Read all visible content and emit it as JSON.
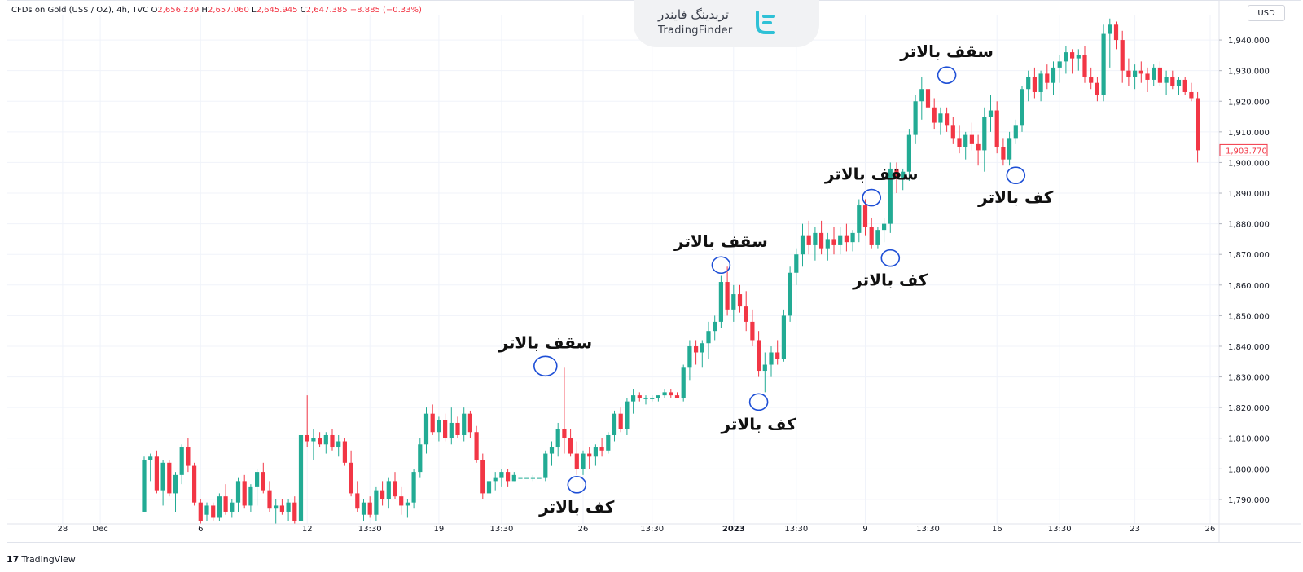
{
  "header": {
    "symbol": "CFDs on Gold (US$ / OZ), 4h, TVC",
    "o_label": "O",
    "o_value": "2,656.239",
    "h_label": "H",
    "h_value": "2,657.060",
    "l_label": "L",
    "l_value": "2,645.945",
    "c_label": "C",
    "c_value": "2,647.385",
    "change": "−8.885 (−0.33%)"
  },
  "brand": {
    "name_fa": "تریدینگ فایندر",
    "name_en": "TradingFinder"
  },
  "currency": "USD",
  "footer": {
    "platform": "TradingView"
  },
  "colors": {
    "up": "#22ab94",
    "down": "#f23645",
    "marker": "#1e4fd6",
    "grid": "#f0f3fa"
  },
  "chart_data": {
    "type": "candlestick",
    "interval": "4h",
    "ylim": [
      1782,
      1948
    ],
    "y_ticks": [
      "1,790.000",
      "1,800.000",
      "1,810.000",
      "1,820.000",
      "1,830.000",
      "1,840.000",
      "1,850.000",
      "1,860.000",
      "1,870.000",
      "1,880.000",
      "1,890.000",
      "1,900.000",
      "1,910.000",
      "1,920.000",
      "1,930.000",
      "1,940.000"
    ],
    "y_tick_values": [
      1790,
      1800,
      1810,
      1820,
      1830,
      1840,
      1850,
      1860,
      1870,
      1880,
      1890,
      1900,
      1910,
      1920,
      1930,
      1940
    ],
    "x_ticks": [
      "28",
      "Dec",
      "6",
      "12",
      "13:30",
      "19",
      "13:30",
      "26",
      "13:30",
      "2023",
      "13:30",
      "9",
      "13:30",
      "16",
      "13:30",
      "23",
      "26"
    ],
    "x_tick_index": [
      -13,
      -7,
      9,
      26,
      36,
      47,
      57,
      70,
      81,
      94,
      104,
      115,
      125,
      136,
      146,
      158,
      170
    ],
    "last_price": "1,903.770",
    "candles": [
      [
        1786,
        1804,
        1786,
        1803
      ],
      [
        1803,
        1805,
        1796,
        1804
      ],
      [
        1804,
        1806,
        1792,
        1793
      ],
      [
        1793,
        1803,
        1788,
        1802
      ],
      [
        1802,
        1803,
        1791,
        1792
      ],
      [
        1792,
        1799,
        1786,
        1798
      ],
      [
        1798,
        1808,
        1795,
        1807
      ],
      [
        1807,
        1810,
        1799,
        1801
      ],
      [
        1801,
        1802,
        1788,
        1789
      ],
      [
        1789,
        1790,
        1782,
        1783
      ],
      [
        1785,
        1789,
        1783,
        1788
      ],
      [
        1788,
        1789,
        1783,
        1784
      ],
      [
        1784,
        1792,
        1783,
        1791
      ],
      [
        1791,
        1795,
        1785,
        1786
      ],
      [
        1786,
        1790,
        1784,
        1789
      ],
      [
        1789,
        1797,
        1786,
        1796
      ],
      [
        1796,
        1798,
        1787,
        1788
      ],
      [
        1788,
        1795,
        1786,
        1794
      ],
      [
        1794,
        1800,
        1788,
        1799
      ],
      [
        1799,
        1802,
        1792,
        1793
      ],
      [
        1793,
        1796,
        1786,
        1787
      ],
      [
        1787,
        1790,
        1782,
        1788
      ],
      [
        1788,
        1790,
        1785,
        1786
      ],
      [
        1786,
        1790,
        1783,
        1789
      ],
      [
        1789,
        1791,
        1782,
        1783
      ],
      [
        1783,
        1812,
        1783,
        1811
      ],
      [
        1811,
        1824,
        1807,
        1809
      ],
      [
        1809,
        1813,
        1803,
        1810
      ],
      [
        1810,
        1812,
        1807,
        1808
      ],
      [
        1808,
        1812,
        1805,
        1811
      ],
      [
        1811,
        1813,
        1806,
        1807
      ],
      [
        1807,
        1811,
        1804,
        1809
      ],
      [
        1809,
        1810,
        1801,
        1802
      ],
      [
        1802,
        1806,
        1791,
        1792
      ],
      [
        1792,
        1796,
        1786,
        1787
      ],
      [
        1785,
        1790,
        1783,
        1789
      ],
      [
        1789,
        1791,
        1784,
        1785
      ],
      [
        1785,
        1794,
        1783,
        1793
      ],
      [
        1793,
        1796,
        1788,
        1790
      ],
      [
        1790,
        1797,
        1787,
        1796
      ],
      [
        1796,
        1799,
        1790,
        1791
      ],
      [
        1791,
        1794,
        1785,
        1788
      ],
      [
        1788,
        1790,
        1784,
        1789
      ],
      [
        1789,
        1800,
        1787,
        1799
      ],
      [
        1799,
        1810,
        1797,
        1808
      ],
      [
        1808,
        1820,
        1805,
        1818
      ],
      [
        1818,
        1821,
        1811,
        1812
      ],
      [
        1812,
        1817,
        1809,
        1816
      ],
      [
        1816,
        1818,
        1809,
        1810
      ],
      [
        1810,
        1820,
        1808,
        1815
      ],
      [
        1815,
        1817,
        1810,
        1811
      ],
      [
        1811,
        1820,
        1809,
        1818
      ],
      [
        1818,
        1819,
        1810,
        1812
      ],
      [
        1812,
        1814,
        1802,
        1803
      ],
      [
        1803,
        1805,
        1790,
        1792
      ],
      [
        1792,
        1798,
        1785,
        1796
      ],
      [
        1796,
        1799,
        1793,
        1797
      ],
      [
        1797,
        1800,
        1794,
        1799
      ],
      [
        1799,
        1800,
        1794,
        1796
      ],
      [
        1796,
        1799,
        1796,
        1798
      ],
      [
        1797,
        1797,
        1797,
        1797
      ],
      [
        1797,
        1797,
        1797,
        1797
      ],
      [
        1797,
        1798,
        1796,
        1797
      ],
      [
        1797,
        1797,
        1797,
        1797
      ],
      [
        1797,
        1806,
        1796,
        1805
      ],
      [
        1805,
        1809,
        1801,
        1807
      ],
      [
        1807,
        1815,
        1804,
        1813
      ],
      [
        1813,
        1833,
        1805,
        1810
      ],
      [
        1810,
        1813,
        1804,
        1805
      ],
      [
        1805,
        1809,
        1798,
        1800
      ],
      [
        1800,
        1806,
        1798,
        1805
      ],
      [
        1805,
        1807,
        1800,
        1804
      ],
      [
        1804,
        1808,
        1801,
        1807
      ],
      [
        1807,
        1810,
        1804,
        1806
      ],
      [
        1806,
        1812,
        1805,
        1811
      ],
      [
        1811,
        1819,
        1809,
        1818
      ],
      [
        1818,
        1820,
        1812,
        1813
      ],
      [
        1813,
        1823,
        1811,
        1822
      ],
      [
        1822,
        1826,
        1818,
        1824
      ],
      [
        1824,
        1825,
        1822,
        1823
      ],
      [
        1823,
        1824,
        1821,
        1823
      ],
      [
        1823,
        1824,
        1822,
        1823
      ],
      [
        1823,
        1824,
        1822,
        1824
      ],
      [
        1824,
        1826,
        1823,
        1825
      ],
      [
        1825,
        1826,
        1823,
        1824
      ],
      [
        1824,
        1825,
        1823,
        1823
      ],
      [
        1823,
        1834,
        1822,
        1833
      ],
      [
        1833,
        1842,
        1829,
        1840
      ],
      [
        1840,
        1842,
        1834,
        1838
      ],
      [
        1838,
        1842,
        1833,
        1841
      ],
      [
        1841,
        1848,
        1836,
        1845
      ],
      [
        1845,
        1850,
        1842,
        1848
      ],
      [
        1848,
        1863,
        1846,
        1861
      ],
      [
        1861,
        1866,
        1850,
        1852
      ],
      [
        1852,
        1860,
        1848,
        1857
      ],
      [
        1857,
        1860,
        1851,
        1853
      ],
      [
        1853,
        1858,
        1845,
        1848
      ],
      [
        1848,
        1852,
        1840,
        1842
      ],
      [
        1842,
        1845,
        1830,
        1832
      ],
      [
        1832,
        1838,
        1825,
        1834
      ],
      [
        1834,
        1840,
        1830,
        1838
      ],
      [
        1838,
        1842,
        1834,
        1836
      ],
      [
        1836,
        1852,
        1835,
        1850
      ],
      [
        1850,
        1866,
        1848,
        1864
      ],
      [
        1864,
        1872,
        1860,
        1870
      ],
      [
        1870,
        1880,
        1866,
        1876
      ],
      [
        1876,
        1881,
        1870,
        1873
      ],
      [
        1873,
        1879,
        1868,
        1877
      ],
      [
        1877,
        1881,
        1870,
        1872
      ],
      [
        1872,
        1877,
        1868,
        1875
      ],
      [
        1875,
        1879,
        1870,
        1873
      ],
      [
        1873,
        1879,
        1870,
        1876
      ],
      [
        1876,
        1880,
        1871,
        1874
      ],
      [
        1874,
        1878,
        1871,
        1877
      ],
      [
        1877,
        1888,
        1874,
        1886
      ],
      [
        1886,
        1888,
        1876,
        1879
      ],
      [
        1879,
        1882,
        1872,
        1873
      ],
      [
        1873,
        1879,
        1872,
        1878
      ],
      [
        1878,
        1882,
        1874,
        1880
      ],
      [
        1880,
        1900,
        1877,
        1898
      ],
      [
        1898,
        1900,
        1890,
        1895
      ],
      [
        1895,
        1898,
        1891,
        1897
      ],
      [
        1897,
        1911,
        1894,
        1909
      ],
      [
        1909,
        1922,
        1906,
        1920
      ],
      [
        1920,
        1928,
        1914,
        1924
      ],
      [
        1924,
        1926,
        1915,
        1918
      ],
      [
        1918,
        1921,
        1911,
        1913
      ],
      [
        1913,
        1918,
        1909,
        1916
      ],
      [
        1916,
        1918,
        1910,
        1912
      ],
      [
        1912,
        1915,
        1906,
        1908
      ],
      [
        1908,
        1912,
        1903,
        1905
      ],
      [
        1905,
        1910,
        1901,
        1909
      ],
      [
        1909,
        1913,
        1904,
        1906
      ],
      [
        1906,
        1909,
        1899,
        1904
      ],
      [
        1904,
        1918,
        1897,
        1915
      ],
      [
        1915,
        1922,
        1910,
        1917
      ],
      [
        1917,
        1920,
        1903,
        1905
      ],
      [
        1905,
        1908,
        1899,
        1901
      ],
      [
        1901,
        1910,
        1899,
        1908
      ],
      [
        1908,
        1914,
        1906,
        1912
      ],
      [
        1912,
        1925,
        1910,
        1924
      ],
      [
        1924,
        1930,
        1920,
        1928
      ],
      [
        1928,
        1931,
        1921,
        1923
      ],
      [
        1923,
        1930,
        1920,
        1929
      ],
      [
        1929,
        1932,
        1924,
        1926
      ],
      [
        1926,
        1933,
        1922,
        1931
      ],
      [
        1931,
        1935,
        1926,
        1933
      ],
      [
        1933,
        1938,
        1929,
        1936
      ],
      [
        1936,
        1937,
        1929,
        1934
      ],
      [
        1934,
        1937,
        1930,
        1935
      ],
      [
        1935,
        1938,
        1926,
        1928
      ],
      [
        1928,
        1931,
        1924,
        1926
      ],
      [
        1926,
        1928,
        1920,
        1922
      ],
      [
        1922,
        1945,
        1920,
        1942
      ],
      [
        1942,
        1947,
        1931,
        1945
      ],
      [
        1945,
        1946,
        1937,
        1940
      ],
      [
        1940,
        1943,
        1926,
        1930
      ],
      [
        1930,
        1934,
        1925,
        1928
      ],
      [
        1928,
        1932,
        1924,
        1930
      ],
      [
        1930,
        1933,
        1926,
        1929
      ],
      [
        1929,
        1931,
        1923,
        1927
      ],
      [
        1927,
        1932,
        1925,
        1931
      ],
      [
        1931,
        1933,
        1925,
        1926
      ],
      [
        1926,
        1930,
        1922,
        1928
      ],
      [
        1928,
        1930,
        1924,
        1925
      ],
      [
        1925,
        1928,
        1922,
        1927
      ],
      [
        1927,
        1928,
        1922,
        1923
      ],
      [
        1923,
        1926,
        1920,
        1921
      ],
      [
        1921,
        1923,
        1900,
        1904
      ]
    ],
    "annotations": [
      {
        "label": "سقف بالاتر",
        "index": 64,
        "price": 1833,
        "kind": "high"
      },
      {
        "label": "کف بالاتر",
        "index": 69,
        "price": 1798,
        "kind": "low"
      },
      {
        "label": "سقف بالاتر",
        "index": 92,
        "price": 1866,
        "kind": "high"
      },
      {
        "label": "کف بالاتر",
        "index": 98,
        "price": 1825,
        "kind": "low"
      },
      {
        "label": "سقف بالاتر",
        "index": 116,
        "price": 1888,
        "kind": "high"
      },
      {
        "label": "کف بالاتر",
        "index": 119,
        "price": 1872,
        "kind": "low"
      },
      {
        "label": "سقف بالاتر",
        "index": 128,
        "price": 1928,
        "kind": "high"
      },
      {
        "label": "کف بالاتر",
        "index": 139,
        "price": 1899,
        "kind": "low"
      }
    ]
  }
}
